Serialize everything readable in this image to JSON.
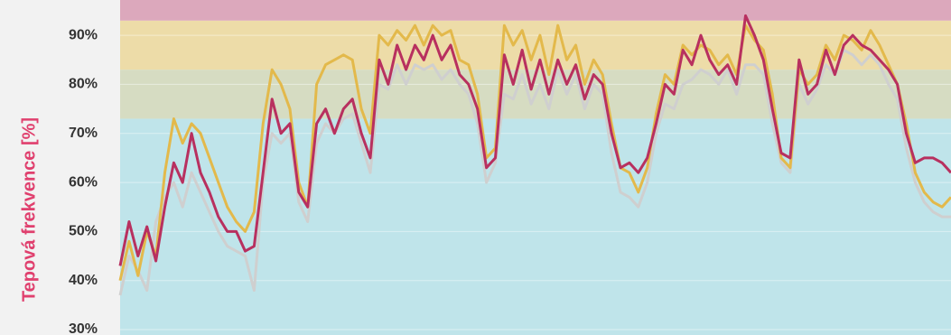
{
  "chart_data": {
    "type": "line",
    "y_label": "Tepová frekvence [%]",
    "ylim": [
      28.9,
      97.2
    ],
    "yticks": [
      {
        "value": 30,
        "label": "30%"
      },
      {
        "value": 40,
        "label": "40%"
      },
      {
        "value": 50,
        "label": "50%"
      },
      {
        "value": 60,
        "label": "60%"
      },
      {
        "value": 70,
        "label": "70%"
      },
      {
        "value": 80,
        "label": "80%"
      },
      {
        "value": 90,
        "label": "90%"
      }
    ],
    "grid": true,
    "zones": [
      {
        "from": 28.9,
        "to": 73,
        "color": "#bfe4ea"
      },
      {
        "from": 73,
        "to": 83,
        "color": "#d6dcc2"
      },
      {
        "from": 83,
        "to": 93,
        "color": "#eddca8"
      },
      {
        "from": 93,
        "to": 97.2,
        "color": "#dca8bc"
      }
    ],
    "series": [
      {
        "color": "#cfcfcf",
        "values": [
          37,
          45,
          42,
          38,
          52,
          57,
          60,
          55,
          62,
          58,
          54,
          50,
          47,
          46,
          45,
          38,
          60,
          70,
          68,
          70,
          56,
          52,
          68,
          72,
          70,
          73,
          74,
          68,
          62,
          80,
          79,
          84,
          80,
          84,
          83,
          84,
          81,
          83,
          80,
          78,
          72,
          60,
          64,
          78,
          77,
          82,
          76,
          80,
          75,
          83,
          78,
          82,
          75,
          80,
          78,
          66,
          58,
          57,
          55,
          60,
          70,
          76,
          75,
          80,
          81,
          83,
          82,
          80,
          83,
          78,
          84,
          84,
          82,
          72,
          64,
          62,
          80,
          76,
          79,
          84,
          82,
          87,
          86,
          84,
          86,
          84,
          80,
          77,
          67,
          60,
          56,
          54,
          53,
          53
        ]
      },
      {
        "color": "#e3b94b",
        "values": [
          40,
          48,
          41,
          50,
          45,
          62,
          73,
          68,
          72,
          70,
          65,
          60,
          55,
          52,
          50,
          54,
          72,
          83,
          80,
          75,
          60,
          55,
          80,
          84,
          85,
          86,
          85,
          75,
          70,
          90,
          88,
          91,
          89,
          92,
          88,
          92,
          90,
          91,
          85,
          84,
          78,
          65,
          67,
          92,
          88,
          91,
          85,
          90,
          82,
          92,
          85,
          88,
          80,
          85,
          82,
          72,
          63,
          62,
          58,
          63,
          74,
          82,
          80,
          88,
          86,
          88,
          87,
          84,
          86,
          82,
          92,
          89,
          87,
          78,
          65,
          63,
          83,
          80,
          82,
          88,
          85,
          90,
          89,
          87,
          91,
          88,
          84,
          80,
          72,
          62,
          58,
          56,
          55,
          57
        ]
      },
      {
        "color": "#b8305f",
        "values": [
          43,
          52,
          45,
          51,
          44,
          55,
          64,
          60,
          70,
          62,
          58,
          53,
          50,
          50,
          46,
          47,
          62,
          77,
          70,
          72,
          58,
          55,
          72,
          75,
          70,
          75,
          77,
          70,
          65,
          85,
          80,
          88,
          83,
          88,
          85,
          90,
          85,
          88,
          82,
          80,
          75,
          63,
          65,
          86,
          80,
          87,
          79,
          85,
          78,
          85,
          80,
          84,
          77,
          82,
          80,
          70,
          63,
          64,
          62,
          65,
          72,
          80,
          78,
          87,
          84,
          90,
          85,
          82,
          84,
          80,
          94,
          90,
          85,
          75,
          66,
          65,
          85,
          78,
          80,
          87,
          82,
          88,
          90,
          88,
          87,
          85,
          83,
          80,
          70,
          64,
          65,
          65,
          64,
          62
        ]
      }
    ]
  }
}
